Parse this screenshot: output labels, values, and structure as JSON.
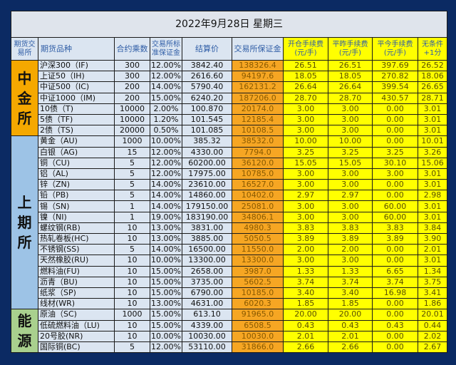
{
  "title": "2022年9月28日  星期三",
  "headers": [
    "期货交易所",
    "期货品种",
    "合约乘数",
    "交易所标准保证金",
    "结算价",
    "交易所保证金",
    "开仓手续费(元/手)",
    "平昨手续费(元/手)",
    "平今手续费(元/手)",
    "无条件+1分"
  ],
  "colors": {
    "background": "#0b2a63",
    "cffex": "#f5a800",
    "shfe": "#9dc3e6",
    "ine": "#a9d08e",
    "margin": "#f6a623",
    "fee": "#ffff00"
  },
  "groups": [
    {
      "name": "中金所",
      "color": "#f5a800",
      "rows": [
        [
          "沪深300（IF)",
          "300",
          "12.00%",
          "3842.40",
          "138326.4",
          "26.51",
          "26.51",
          "397.69",
          "26.52"
        ],
        [
          "上证50（IH)",
          "300",
          "12.00%",
          "2616.60",
          "94197.6",
          "18.05",
          "18.05",
          "270.82",
          "18.06"
        ],
        [
          "中证500（IC)",
          "200",
          "14.00%",
          "5790.40",
          "162131.2",
          "26.64",
          "26.64",
          "399.54",
          "26.65"
        ],
        [
          "中证1000（IM)",
          "200",
          "15.00%",
          "6240.20",
          "187206.0",
          "28.70",
          "28.70",
          "430.57",
          "28.71"
        ],
        [
          "10债（T)",
          "10000",
          "2.00%",
          "100.870",
          "20174.0",
          "3.00",
          "3.00",
          "0.00",
          "3.01"
        ],
        [
          "5债（TF)",
          "10000",
          "1.20%",
          "101.545",
          "12185.4",
          "3.00",
          "3.00",
          "0.00",
          "3.01"
        ],
        [
          "2债（TS)",
          "20000",
          "0.50%",
          "101.085",
          "10108.5",
          "3.00",
          "3.00",
          "0.00",
          "3.01"
        ]
      ]
    },
    {
      "name": "上期所",
      "color": "#9dc3e6",
      "rows": [
        [
          "黄金（AU)",
          "1000",
          "10.00%",
          "385.32",
          "38532.0",
          "10.00",
          "10.00",
          "0.00",
          "10.01"
        ],
        [
          "白银（AG)",
          "15",
          "12.00%",
          "4330.00",
          "7794.0",
          "3.25",
          "3.25",
          "3.25",
          "3.26"
        ],
        [
          "铜（CU)",
          "5",
          "12.00%",
          "60200.00",
          "36120.0",
          "15.05",
          "15.05",
          "30.10",
          "15.06"
        ],
        [
          "铝（AL)",
          "5",
          "12.00%",
          "17975.00",
          "10785.0",
          "3.00",
          "3.00",
          "3.00",
          "3.01"
        ],
        [
          "锌（ZN)",
          "5",
          "14.00%",
          "23610.00",
          "16527.0",
          "3.00",
          "3.00",
          "0.00",
          "3.01"
        ],
        [
          "铅（PB)",
          "5",
          "14.00%",
          "14860.00",
          "10402.0",
          "2.97",
          "2.97",
          "0.00",
          "2.98"
        ],
        [
          "锡（SN)",
          "1",
          "14.00%",
          "179150.00",
          "25081.0",
          "3.00",
          "3.00",
          "60.00",
          "3.01"
        ],
        [
          "镍（NI)",
          "1",
          "19.00%",
          "183190.00",
          "34806.1",
          "3.00",
          "3.00",
          "60.00",
          "3.01"
        ],
        [
          "螺纹钢(RB)",
          "10",
          "13.00%",
          "3831.00",
          "4980.3",
          "3.83",
          "3.83",
          "3.83",
          "3.84"
        ],
        [
          "热轧卷板(HC)",
          "10",
          "13.00%",
          "3885.00",
          "5050.5",
          "3.89",
          "3.89",
          "3.89",
          "3.90"
        ],
        [
          "不锈钢(SS)",
          "5",
          "14.00%",
          "16500.00",
          "11550.0",
          "2.00",
          "2.00",
          "0.00",
          "2.01"
        ],
        [
          "天然橡胶(RU)",
          "10",
          "10.00%",
          "13300.00",
          "13300.0",
          "3.00",
          "3.00",
          "0.00",
          "3.01"
        ],
        [
          "燃料油(FU)",
          "10",
          "15.00%",
          "2658.00",
          "3987.0",
          "1.33",
          "1.33",
          "6.65",
          "1.34"
        ],
        [
          "沥青（BU)",
          "10",
          "15.00%",
          "3735.00",
          "5602.5",
          "3.74",
          "3.74",
          "3.74",
          "3.75"
        ],
        [
          "纸浆（SP)",
          "10",
          "15.00%",
          "6790.00",
          "10185.0",
          "3.40",
          "3.40",
          "16.98",
          "3.41"
        ],
        [
          "线材(WR)",
          "10",
          "13.00%",
          "4631.00",
          "6020.3",
          "1.85",
          "1.85",
          "0.00",
          "1.86"
        ]
      ]
    },
    {
      "name": "能源",
      "color": "#a9d08e",
      "rows": [
        [
          "原油（SC)",
          "1000",
          "15.00%",
          "613.10",
          "91965.0",
          "20.00",
          "20.00",
          "0.00",
          "20.01"
        ],
        [
          "低硫燃料油（LU)",
          "10",
          "15.00%",
          "4339.00",
          "6508.5",
          "0.43",
          "0.43",
          "0.43",
          "0.44"
        ],
        [
          "20号胶(NR)",
          "10",
          "10.00%",
          "10030.00",
          "10030.0",
          "2.01",
          "2.01",
          "0.00",
          "2.02"
        ],
        [
          "国际铜(BC)",
          "5",
          "12.00%",
          "53110.00",
          "31866.0",
          "2.66",
          "2.66",
          "0.00",
          "2.67"
        ]
      ]
    }
  ]
}
